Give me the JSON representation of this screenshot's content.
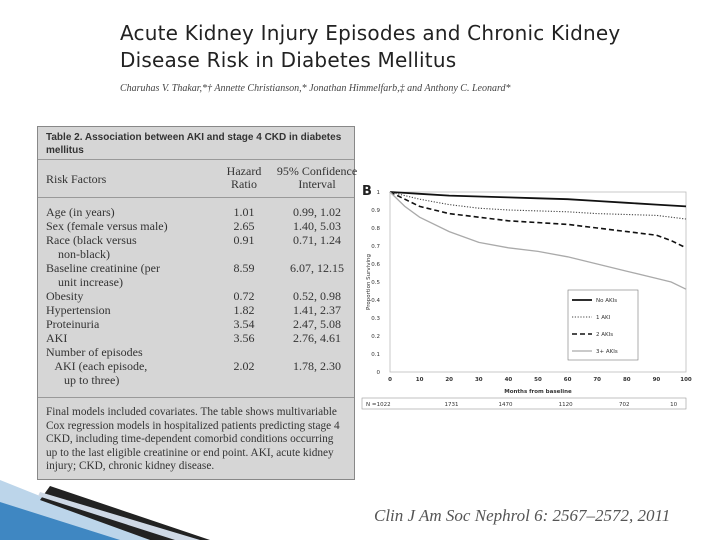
{
  "header": {
    "title_line1": "Acute Kidney Injury Episodes and Chronic Kidney",
    "title_line2": "Disease Risk in Diabetes Mellitus",
    "authors": "Charuhas V. Thakar,*† Annette Christianson,* Jonathan Himmelfarb,‡ and Anthony C. Leonard*"
  },
  "table": {
    "caption_line1": "Table 2.  Association between AKI and stage 4 CKD in diabetes",
    "caption_line2": "mellitus",
    "col_headers": {
      "risk_factors": "Risk Factors",
      "hazard_line1": "Hazard",
      "hazard_line2": "Ratio",
      "ci_line1": "95% Confidence",
      "ci_line2": "Interval"
    },
    "rows": [
      {
        "factor": "Age (in years)",
        "hr": "1.01",
        "ci": "0.99, 1.02"
      },
      {
        "factor": "Sex (female versus male)",
        "hr": "2.65",
        "ci": "1.40, 5.03"
      },
      {
        "factor": "Race (black versus",
        "hr": "0.91",
        "ci": "0.71, 1.24"
      },
      {
        "factor": "    non-black)",
        "hr": "",
        "ci": ""
      },
      {
        "factor": "Baseline creatinine (per",
        "hr": "8.59",
        "ci": "6.07, 12.15"
      },
      {
        "factor": "    unit increase)",
        "hr": "",
        "ci": ""
      },
      {
        "factor": "Obesity",
        "hr": "0.72",
        "ci": "0.52, 0.98"
      },
      {
        "factor": "Hypertension",
        "hr": "1.82",
        "ci": "1.41, 2.37"
      },
      {
        "factor": "Proteinuria",
        "hr": "3.54",
        "ci": "2.47, 5.08"
      },
      {
        "factor": "AKI",
        "hr": "3.56",
        "ci": "2.76, 4.61"
      },
      {
        "factor": "Number of episodes",
        "hr": "",
        "ci": ""
      },
      {
        "factor": "   AKI (each episode,",
        "hr": "2.02",
        "ci": "1.78, 2.30"
      },
      {
        "factor": "      up to three)",
        "hr": "",
        "ci": ""
      }
    ],
    "footnote": "Final models included covariates. The table shows multivariable Cox regression models in hospitalized patients predicting stage 4 CKD, including time-dependent comorbid conditions occurring up to the last eligible creatinine or end point. AKI, acute kidney injury; CKD, chronic kidney disease."
  },
  "citation": "Clin J Am Soc Nephrol 6: 2567–2572, 2011",
  "colors": {
    "table_bg": "#d6d6d6",
    "no_aki": "#111111",
    "one_aki": "#444444",
    "two_aki": "#111111",
    "three_aki": "#aaaaaa",
    "deco_blue": "#3f87c2"
  },
  "chart_data": {
    "type": "line",
    "panel_label": "B",
    "ylabel": "Proportion Surviving",
    "xlabel": "Months from baseline",
    "x_ticks": [
      "0",
      "10",
      "20",
      "30",
      "40",
      "50",
      "60",
      "70",
      "80",
      "90",
      "100"
    ],
    "y_ticks": [
      "0",
      "0.1",
      "0.2",
      "0.3",
      "0.4",
      "0.5",
      "0.6",
      "0.7",
      "0.8",
      "0.9",
      "1"
    ],
    "xlim": [
      0,
      100
    ],
    "ylim": [
      0,
      1
    ],
    "legend_position": "middle-right",
    "series": [
      {
        "name": "No AKIs",
        "style": "solid-thick",
        "x": [
          0,
          5,
          10,
          20,
          30,
          40,
          50,
          60,
          70,
          80,
          90,
          95,
          100
        ],
        "y": [
          1.0,
          0.995,
          0.99,
          0.98,
          0.975,
          0.97,
          0.965,
          0.96,
          0.95,
          0.94,
          0.93,
          0.925,
          0.92
        ]
      },
      {
        "name": "1 AKI",
        "style": "dotted",
        "x": [
          0,
          5,
          10,
          20,
          30,
          40,
          50,
          60,
          70,
          80,
          90,
          95,
          100
        ],
        "y": [
          1.0,
          0.98,
          0.96,
          0.93,
          0.91,
          0.9,
          0.895,
          0.89,
          0.88,
          0.875,
          0.87,
          0.86,
          0.85
        ]
      },
      {
        "name": "2 AKIs",
        "style": "dashed",
        "x": [
          0,
          5,
          10,
          20,
          30,
          40,
          50,
          60,
          70,
          80,
          90,
          95,
          100
        ],
        "y": [
          1.0,
          0.96,
          0.92,
          0.88,
          0.86,
          0.84,
          0.83,
          0.82,
          0.8,
          0.78,
          0.76,
          0.73,
          0.69
        ]
      },
      {
        "name": "3+ AKIs",
        "style": "solid-gray",
        "x": [
          0,
          5,
          10,
          20,
          30,
          40,
          50,
          60,
          70,
          80,
          90,
          95,
          100
        ],
        "y": [
          1.0,
          0.92,
          0.86,
          0.78,
          0.72,
          0.69,
          0.67,
          0.64,
          0.6,
          0.56,
          0.52,
          0.5,
          0.46
        ]
      }
    ],
    "risk_label": "N =",
    "risk_values": [
      "1022",
      "1731",
      "1470",
      "1120",
      "702",
      "10"
    ]
  }
}
